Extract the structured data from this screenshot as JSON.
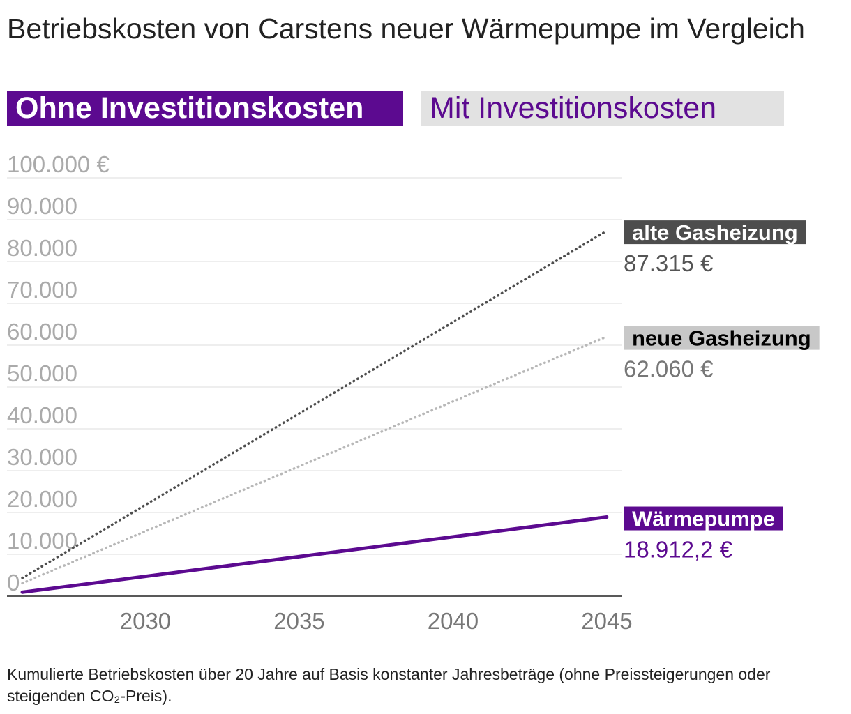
{
  "title": "Betriebskosten von Carstens neuer Wärmepumpe im Vergleich",
  "tabs": [
    {
      "label": "Ohne Investitionskosten",
      "active": true
    },
    {
      "label": "Mit Investitionskosten",
      "active": false
    }
  ],
  "colors": {
    "accent": "#5c0a90",
    "alte_gas": "#4d4d4d",
    "neue_gas": "#b8b8b8",
    "tab_inactive_bg": "#e2e2e2",
    "grid": "#dddddd",
    "axis_text": "#aaaaaa",
    "x_tick_text": "#777777"
  },
  "chart_data": {
    "type": "line",
    "ylim": [
      0,
      100000
    ],
    "xlim": [
      2025.5,
      2045.5
    ],
    "y_ticks": [
      {
        "value": 0,
        "label": "0"
      },
      {
        "value": 10000,
        "label": "10.000"
      },
      {
        "value": 20000,
        "label": "20.000"
      },
      {
        "value": 30000,
        "label": "30.000"
      },
      {
        "value": 40000,
        "label": "40.000"
      },
      {
        "value": 50000,
        "label": "50.000"
      },
      {
        "value": 60000,
        "label": "60.000"
      },
      {
        "value": 70000,
        "label": "70.000"
      },
      {
        "value": 80000,
        "label": "80.000"
      },
      {
        "value": 90000,
        "label": "90.000"
      },
      {
        "value": 100000,
        "label": "100.000 €"
      }
    ],
    "x_ticks": [
      {
        "value": 2030,
        "label": "2030"
      },
      {
        "value": 2035,
        "label": "2035"
      },
      {
        "value": 2040,
        "label": "2040"
      },
      {
        "value": 2045,
        "label": "2045"
      }
    ],
    "grid": true,
    "series": [
      {
        "name": "alte Gasheizung",
        "x": [
          2026,
          2045
        ],
        "y": [
          4366,
          87315
        ],
        "style": "dotted",
        "color": "#4d4d4d",
        "label_bg": "#4d4d4d",
        "label_color": "#ffffff",
        "end_value_label": "87.315 €",
        "end_value_color": "#555555"
      },
      {
        "name": "neue Gasheizung",
        "x": [
          2026,
          2045
        ],
        "y": [
          3103,
          62060
        ],
        "style": "dotted",
        "color": "#b8b8b8",
        "label_bg": "#c8c8c8",
        "label_color": "#000000",
        "end_value_label": "62.060 €",
        "end_value_color": "#777777"
      },
      {
        "name": "Wärmepumpe",
        "x": [
          2026,
          2045
        ],
        "y": [
          946,
          18912.2
        ],
        "style": "solid",
        "color": "#5c0a90",
        "label_bg": "#5c0a90",
        "label_color": "#ffffff",
        "end_value_label": "18.912,2 €",
        "end_value_color": "#5c0a90"
      }
    ]
  },
  "footnote": "Kumulierte Betriebskosten über 20 Jahre auf Basis konstanter Jahresbeträge (ohne Preissteigerungen oder steigenden CO₂-Preis)."
}
